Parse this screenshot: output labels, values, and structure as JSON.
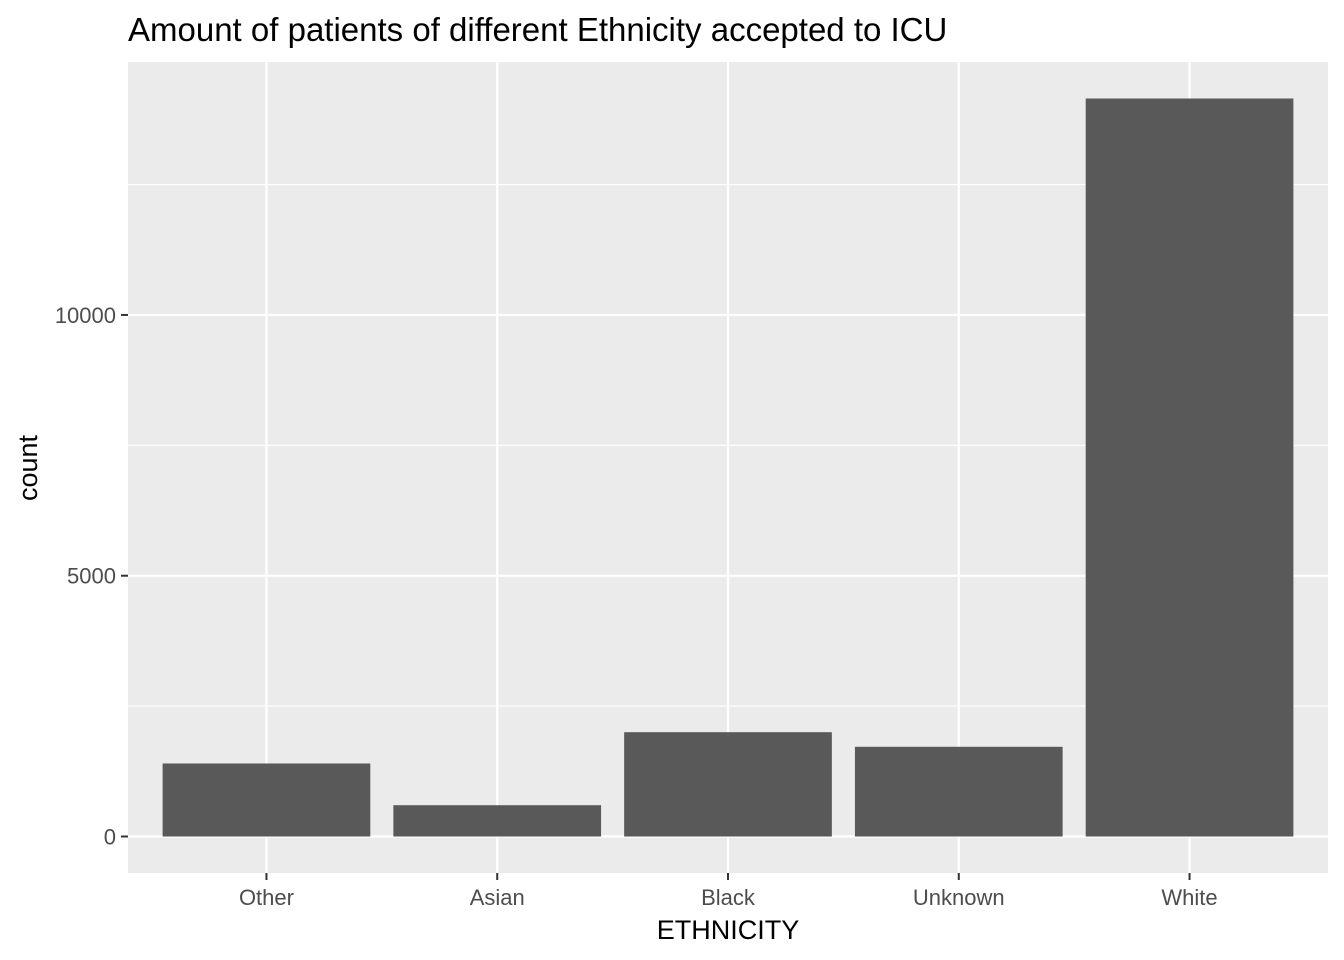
{
  "chart_data": {
    "type": "bar",
    "title": "Amount of patients of different Ethnicity accepted to ICU",
    "xlabel": "ETHNICITY",
    "ylabel": "count",
    "categories": [
      "Other",
      "Asian",
      "Black",
      "Unknown",
      "White"
    ],
    "values": [
      1400,
      600,
      2000,
      1720,
      14150
    ],
    "ylim": [
      -700,
      14850
    ],
    "yticks": [
      0,
      5000,
      10000
    ],
    "ytick_labels": [
      "0",
      "5000",
      "10000"
    ],
    "y_minor_ticks": [
      2500,
      7500,
      12500
    ],
    "grid": true,
    "legend": "none",
    "colors": {
      "bar": "#595959",
      "panel_background": "#ebebeb",
      "gridline": "#ffffff",
      "tick_text": "#4d4d4d",
      "axis_tick": "#333333"
    }
  }
}
